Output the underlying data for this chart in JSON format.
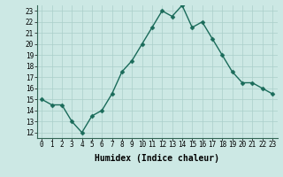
{
  "x": [
    0,
    1,
    2,
    3,
    4,
    5,
    6,
    7,
    8,
    9,
    10,
    11,
    12,
    13,
    14,
    15,
    16,
    17,
    18,
    19,
    20,
    21,
    22,
    23
  ],
  "y": [
    15,
    14.5,
    14.5,
    13,
    12,
    13.5,
    14,
    15.5,
    17.5,
    18.5,
    20,
    21.5,
    23,
    22.5,
    23.5,
    21.5,
    22,
    20.5,
    19,
    17.5,
    16.5,
    16.5,
    16,
    15.5
  ],
  "line_color": "#1a6b5a",
  "marker_color": "#1a6b5a",
  "bg_color": "#cce8e4",
  "grid_color": "#aacfca",
  "xlabel": "Humidex (Indice chaleur)",
  "ylim": [
    11.5,
    23.5
  ],
  "xlim": [
    -0.5,
    23.5
  ],
  "yticks": [
    12,
    13,
    14,
    15,
    16,
    17,
    18,
    19,
    20,
    21,
    22,
    23
  ],
  "xticks": [
    0,
    1,
    2,
    3,
    4,
    5,
    6,
    7,
    8,
    9,
    10,
    11,
    12,
    13,
    14,
    15,
    16,
    17,
    18,
    19,
    20,
    21,
    22,
    23
  ],
  "xlabel_fontsize": 7,
  "tick_fontsize": 5.5,
  "line_width": 1.0,
  "marker_size": 2.5
}
